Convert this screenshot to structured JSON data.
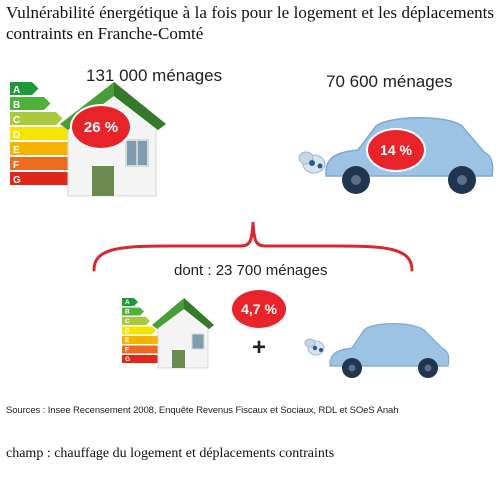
{
  "title": "Vulnérabilité énergétique à la fois pour le logement et les déplacements contraints en Franche-Comté",
  "housing": {
    "count": "131 000 ménages",
    "percent": "26 %",
    "energy_classes": [
      "A",
      "B",
      "C",
      "D",
      "E",
      "F",
      "G"
    ],
    "class_colors": [
      "#1f9a3b",
      "#4fb03a",
      "#a7c93b",
      "#f4e400",
      "#f5b400",
      "#ec6b22",
      "#e1261c"
    ]
  },
  "transport": {
    "count": "70 600 ménages",
    "percent": "14 %",
    "car_color": "#9cc3e4"
  },
  "both": {
    "count": "dont : 23 700 ménages",
    "percent": "4,7 %",
    "plus": "+"
  },
  "sources": "Sources : Insee Recensement 2008, Enquête Revenus Fiscaux et Sociaux, RDL et SOeS Anah",
  "champ": "champ : chauffage du logement et déplacements contraints",
  "accent_color": "#e8232a"
}
